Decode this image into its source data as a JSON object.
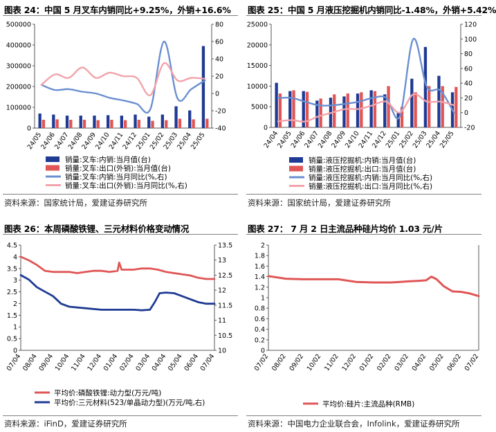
{
  "colors": {
    "navy": "#1f3a93",
    "red": "#e05555",
    "blue_line": "#6a8fd0",
    "pink_line": "#f2a3aa",
    "axis": "#555555",
    "gold": "#c9a227"
  },
  "chart_data": [
    {
      "id": "fig24",
      "title": "图表 24：中国 5 月叉车内销同比+9.25%，外销+16.6%",
      "source": "资料来源：国家统计局，爱建证券研究所",
      "type": "bar",
      "categories": [
        "24/05",
        "24/06",
        "24/07",
        "24/08",
        "24/09",
        "24/10",
        "24/11",
        "24/12",
        "25/01",
        "25/02",
        "25/03",
        "25/04",
        "25/05"
      ],
      "ylim_left": [
        0,
        500000
      ],
      "yticks_left": [
        0,
        100000,
        200000,
        300000,
        400000,
        500000
      ],
      "ylim_right": [
        -40,
        80
      ],
      "yticks_right": [
        -40,
        -20,
        0,
        20,
        40,
        60,
        80
      ],
      "series": [
        {
          "name": "销量:叉车:内销:当月值(台)",
          "type": "bar",
          "axis": "left",
          "color": "#1f3a93",
          "values": [
            70000,
            65000,
            60000,
            60000,
            60000,
            62000,
            60000,
            65000,
            55000,
            65000,
            105000,
            85000,
            395000
          ]
        },
        {
          "name": "销量:叉车:出口(外销):当月值(台)",
          "type": "bar",
          "axis": "left",
          "color": "#e05555",
          "values": [
            40000,
            42000,
            40000,
            40000,
            38000,
            40000,
            38000,
            40000,
            35000,
            38000,
            45000,
            42000,
            45000
          ]
        },
        {
          "name": "销量:叉车:内销:当月同比(%,右)",
          "type": "line",
          "axis": "right",
          "color": "#6a8fd0",
          "values": [
            10,
            4,
            5,
            2,
            0,
            -5,
            -8,
            -12,
            -18,
            60,
            -6,
            5,
            15
          ]
        },
        {
          "name": "销量:叉车:出口(外销):当月同比(%,右)",
          "type": "line",
          "axis": "right",
          "color": "#f2a3aa",
          "values": [
            10,
            22,
            18,
            30,
            18,
            24,
            20,
            18,
            -2,
            35,
            15,
            18,
            17
          ]
        }
      ]
    },
    {
      "id": "fig25",
      "title": "图表 25：中国 5 月液压挖掘机内销同比-1.48%，外销+5.42%",
      "source": "资料来源：国家统计局，爱建证券研究所",
      "type": "bar",
      "categories": [
        "24/04",
        "24/05",
        "24/06",
        "24/07",
        "24/08",
        "24/09",
        "24/10",
        "24/11",
        "24/12",
        "25/01",
        "25/02",
        "25/03",
        "25/04",
        "25/05"
      ],
      "ylim_left": [
        0,
        25000
      ],
      "yticks_left": [
        0,
        5000,
        10000,
        15000,
        20000,
        25000
      ],
      "ylim_right": [
        -20,
        120
      ],
      "yticks_right": [
        -20,
        0,
        20,
        40,
        60,
        80,
        100,
        120
      ],
      "series": [
        {
          "name": "销量:液压挖掘机:内销:当月值(台)",
          "type": "bar",
          "axis": "left",
          "color": "#1f3a93",
          "values": [
            10800,
            8800,
            8800,
            6500,
            7200,
            7500,
            8200,
            9000,
            8000,
            3500,
            11800,
            19500,
            12500,
            8500
          ]
        },
        {
          "name": "销量:液压挖掘机:出口:当月值(台)",
          "type": "bar",
          "axis": "left",
          "color": "#e05555",
          "values": [
            8200,
            9000,
            8600,
            7000,
            8000,
            8200,
            8500,
            8800,
            10000,
            5000,
            8500,
            10000,
            10000,
            9800
          ]
        },
        {
          "name": "销量:液压挖掘机:内销:当月同比(%,右)",
          "type": "line",
          "axis": "right",
          "color": "#6a8fd0",
          "values": [
            20,
            20,
            15,
            10,
            10,
            12,
            15,
            20,
            20,
            -5,
            100,
            35,
            30,
            0
          ]
        },
        {
          "name": "销量:液压挖掘机:出口:当月同比(%,右)",
          "type": "line",
          "axis": "right",
          "color": "#f2a3aa",
          "values": [
            -12,
            -10,
            -12,
            -5,
            0,
            5,
            5,
            10,
            15,
            0,
            25,
            15,
            15,
            10
          ]
        }
      ]
    },
    {
      "id": "fig26",
      "title": "图表 26：本周磷酸铁锂、三元材料价格变动情况",
      "source": "资料来源：iFinD，爱建证券研究所",
      "type": "line",
      "categories": [
        "07/04",
        "08/04",
        "09/04",
        "10/04",
        "11/04",
        "12/04",
        "01/04",
        "02/04",
        "03/04",
        "04/04",
        "05/04",
        "06/04",
        "07/04"
      ],
      "ylim_left": [
        0,
        4.5
      ],
      "yticks_left": [
        0,
        0.5,
        1,
        1.5,
        2,
        2.5,
        3,
        3.5,
        4,
        4.5
      ],
      "ylim_right": [
        10,
        13.5
      ],
      "yticks_right": [
        10,
        10.5,
        11,
        11.5,
        12,
        12.5,
        13,
        13.5
      ],
      "series": [
        {
          "name": "平均价:磷酸铁锂:动力型(万元/吨)",
          "type": "line",
          "axis": "left",
          "color": "#e05555",
          "points": [
            [
              0,
              4.0
            ],
            [
              0.5,
              3.85
            ],
            [
              1,
              3.65
            ],
            [
              1.5,
              3.4
            ],
            [
              2,
              3.35
            ],
            [
              3,
              3.35
            ],
            [
              3.5,
              3.3
            ],
            [
              4,
              3.35
            ],
            [
              4.5,
              3.4
            ],
            [
              5,
              3.4
            ],
            [
              5.5,
              3.35
            ],
            [
              6,
              3.4
            ],
            [
              6.1,
              3.75
            ],
            [
              6.25,
              3.45
            ],
            [
              7,
              3.45
            ],
            [
              7.5,
              3.5
            ],
            [
              8,
              3.5
            ],
            [
              8.5,
              3.45
            ],
            [
              9,
              3.35
            ],
            [
              9.5,
              3.3
            ],
            [
              10,
              3.25
            ],
            [
              10.5,
              3.2
            ],
            [
              11,
              3.1
            ],
            [
              11.5,
              3.05
            ],
            [
              12,
              3.05
            ]
          ]
        },
        {
          "name": "平均价:三元材料(523/单晶动力型)(万元/吨,右)",
          "type": "line",
          "axis": "right",
          "color": "#1f3a93",
          "points": [
            [
              0,
              12.5
            ],
            [
              0.5,
              12.35
            ],
            [
              1,
              12.1
            ],
            [
              1.5,
              11.95
            ],
            [
              2,
              11.8
            ],
            [
              2.5,
              11.55
            ],
            [
              3,
              11.45
            ],
            [
              4,
              11.4
            ],
            [
              5,
              11.35
            ],
            [
              6,
              11.35
            ],
            [
              7,
              11.35
            ],
            [
              7.5,
              11.33
            ],
            [
              8,
              11.35
            ],
            [
              8.3,
              11.6
            ],
            [
              8.6,
              11.9
            ],
            [
              9,
              11.92
            ],
            [
              9.5,
              11.9
            ],
            [
              10,
              11.8
            ],
            [
              10.5,
              11.7
            ],
            [
              11,
              11.6
            ],
            [
              11.5,
              11.55
            ],
            [
              12,
              11.55
            ]
          ]
        }
      ]
    },
    {
      "id": "fig27",
      "title": "图表 27：  7 月 2 日主流品种硅片均价 1.03 元/片",
      "source": "资料来源：中国电力企业联合会，Infolink，爱建证券研究所",
      "type": "line",
      "categories": [
        "07/02",
        "08/02",
        "09/02",
        "10/02",
        "11/02",
        "12/02",
        "01/02",
        "02/02",
        "03/02",
        "04/02",
        "05/02",
        "06/02",
        "07/02"
      ],
      "ylim_left": [
        0,
        2
      ],
      "yticks_left": [
        0,
        0.2,
        0.4,
        0.6,
        0.8,
        1,
        1.2,
        1.4,
        1.6,
        1.8,
        2
      ],
      "series": [
        {
          "name": "平均价:硅片:主流品种(RMB)",
          "type": "line",
          "axis": "left",
          "color": "#e05555",
          "points": [
            [
              0,
              1.41
            ],
            [
              1,
              1.36
            ],
            [
              2,
              1.35
            ],
            [
              3,
              1.35
            ],
            [
              4,
              1.35
            ],
            [
              5,
              1.3
            ],
            [
              6,
              1.29
            ],
            [
              7,
              1.29
            ],
            [
              7.5,
              1.3
            ],
            [
              8,
              1.31
            ],
            [
              8.5,
              1.32
            ],
            [
              9,
              1.33
            ],
            [
              9.3,
              1.4
            ],
            [
              9.6,
              1.35
            ],
            [
              10,
              1.22
            ],
            [
              10.5,
              1.12
            ],
            [
              11,
              1.11
            ],
            [
              11.5,
              1.08
            ],
            [
              12,
              1.03
            ]
          ]
        }
      ]
    }
  ]
}
